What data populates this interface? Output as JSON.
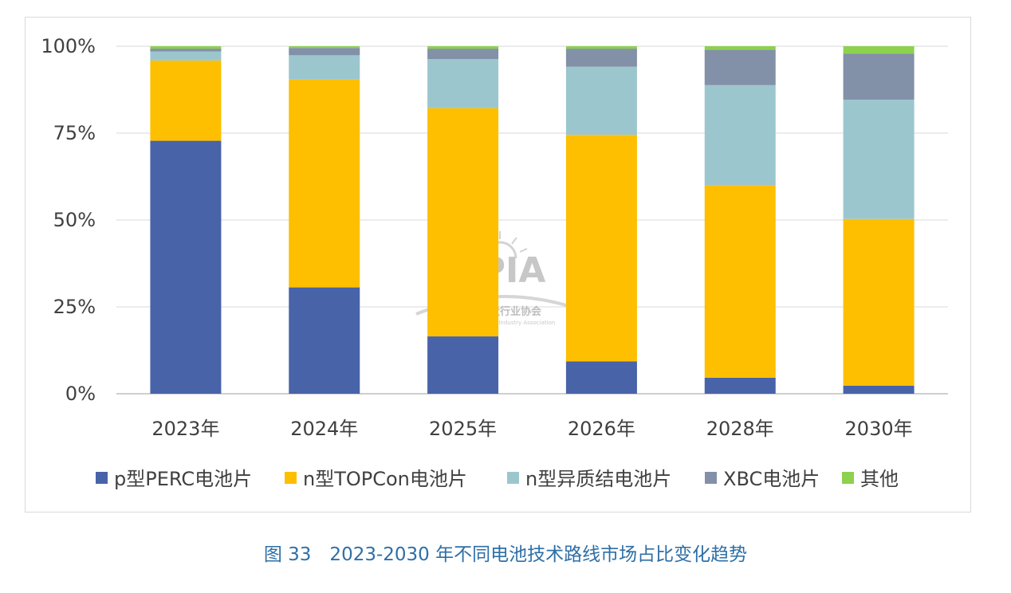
{
  "caption": "图 33　2023-2030 年不同电池技术路线市场占比变化趋势",
  "watermark": {
    "logo_text": "CPIA",
    "cn_text": "中国光伏行业协会",
    "en_text": "China Photovoltaic Industry Association"
  },
  "chart_data": {
    "type": "bar",
    "stacked": true,
    "percent": true,
    "categories": [
      "2023年",
      "2024年",
      "2025年",
      "2026年",
      "2028年",
      "2030年"
    ],
    "y_ticks": [
      "0%",
      "25%",
      "50%",
      "75%",
      "100%"
    ],
    "ylim": [
      0,
      100
    ],
    "grid": true,
    "legend_position": "bottom",
    "series": [
      {
        "name": "p型PERC电池片",
        "color": "#4863a8",
        "values": [
          72.8,
          30.6,
          16.5,
          9.3,
          4.6,
          2.3
        ]
      },
      {
        "name": "n型TOPCon电池片",
        "color": "#fdbf00",
        "values": [
          23.1,
          59.8,
          65.7,
          65.2,
          55.4,
          48.0
        ]
      },
      {
        "name": "n型异质结电池片",
        "color": "#9cc6ce",
        "values": [
          2.6,
          7.0,
          14.1,
          19.6,
          28.8,
          34.3
        ]
      },
      {
        "name": "XBC电池片",
        "color": "#8290a8",
        "values": [
          0.8,
          2.1,
          3.0,
          5.2,
          10.2,
          13.3
        ]
      },
      {
        "name": "其他",
        "color": "#8dd14e",
        "values": [
          0.7,
          0.5,
          0.7,
          0.7,
          1.0,
          2.1
        ]
      }
    ]
  }
}
